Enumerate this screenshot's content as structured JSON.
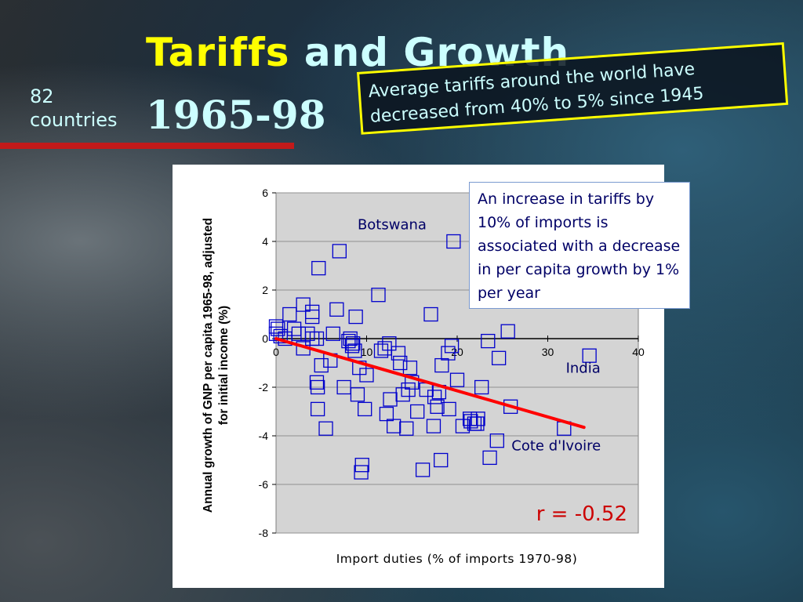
{
  "slide": {
    "title_part1": "Tariffs",
    "title_part2": " and Growth",
    "title_years": "1965-98",
    "subtitle_count": "82",
    "subtitle_unit": "countries",
    "note": "Average tariffs around the world have decreased from 40% to 5% since 1945",
    "annotation": "An increase in tariffs by 10% of imports is associated with a decrease in per capita growth by 1% per year"
  },
  "colors": {
    "title_highlight": "#ffff00",
    "title_text": "#ccffff",
    "accent_rule": "#c21a1a",
    "marker": "#0000cc",
    "trend_line": "#ff0000",
    "label_text": "#000066"
  },
  "chart_data": {
    "type": "scatter",
    "xlabel": "Import duties (% of imports 1970-98)",
    "ylabel": "Annual growth of GNP per capita 1965-98, adjusted for initial income (%)",
    "xlim": [
      0,
      40
    ],
    "ylim": [
      -8,
      6
    ],
    "x_ticks": [
      0,
      10,
      20,
      30,
      40
    ],
    "y_ticks": [
      6,
      4,
      2,
      0,
      -2,
      -4,
      -6,
      -8
    ],
    "grid": true,
    "correlation_label": "r = -0.52",
    "trend_line": [
      [
        0,
        0
      ],
      [
        34,
        -3.65
      ]
    ],
    "labels": [
      {
        "text": "Botswana",
        "x": 9,
        "y": 4.5
      },
      {
        "text": "India",
        "x": 32,
        "y": -1.4
      },
      {
        "text": "Cote d'Ivoire",
        "x": 26,
        "y": -4.6
      }
    ],
    "points": [
      [
        0,
        0.5
      ],
      [
        0,
        0.2
      ],
      [
        0.2,
        0.4
      ],
      [
        0.5,
        0.1
      ],
      [
        1,
        0
      ],
      [
        1.5,
        1.0
      ],
      [
        2,
        0.4
      ],
      [
        2.5,
        0.2
      ],
      [
        3,
        1.4
      ],
      [
        3,
        -0.4
      ],
      [
        3.5,
        0.2
      ],
      [
        4,
        1.1
      ],
      [
        4,
        0.9
      ],
      [
        4,
        0
      ],
      [
        4.5,
        0
      ],
      [
        4.5,
        -1.8
      ],
      [
        4.6,
        -2.0
      ],
      [
        4.6,
        -2.9
      ],
      [
        4.7,
        2.9
      ],
      [
        5,
        -1.1
      ],
      [
        5.5,
        -3.7
      ],
      [
        6,
        -0.9
      ],
      [
        6.3,
        0.2
      ],
      [
        6.7,
        1.2
      ],
      [
        7,
        3.6
      ],
      [
        7.5,
        -2.0
      ],
      [
        8,
        -0.1
      ],
      [
        8.2,
        0
      ],
      [
        8.4,
        -0.3
      ],
      [
        8.5,
        -0.2
      ],
      [
        8.7,
        -0.5
      ],
      [
        8.8,
        0.9
      ],
      [
        9,
        -2.3
      ],
      [
        9.2,
        -1.2
      ],
      [
        9.4,
        -5.5
      ],
      [
        9.5,
        -5.2
      ],
      [
        9.8,
        -2.9
      ],
      [
        10,
        -1.5
      ],
      [
        11.3,
        1.8
      ],
      [
        11.6,
        -0.5
      ],
      [
        12,
        -0.4
      ],
      [
        12.2,
        -3.1
      ],
      [
        12.5,
        -0.2
      ],
      [
        12.6,
        -2.5
      ],
      [
        13,
        -3.6
      ],
      [
        13.5,
        -0.6
      ],
      [
        13.7,
        -1.0
      ],
      [
        14,
        -2.3
      ],
      [
        14.4,
        -3.7
      ],
      [
        14.6,
        -2.1
      ],
      [
        14.8,
        -1.2
      ],
      [
        15,
        -1.8
      ],
      [
        15.6,
        -3.0
      ],
      [
        16.2,
        -5.4
      ],
      [
        16.6,
        -2.1
      ],
      [
        17.1,
        1.0
      ],
      [
        17.4,
        -3.6
      ],
      [
        17.5,
        -2.4
      ],
      [
        17.8,
        -2.8
      ],
      [
        18,
        -2.2
      ],
      [
        18.2,
        -5.0
      ],
      [
        18.3,
        -1.1
      ],
      [
        19,
        -0.6
      ],
      [
        19.1,
        -2.9
      ],
      [
        19.4,
        -0.3
      ],
      [
        19.6,
        4.0
      ],
      [
        20,
        -1.7
      ],
      [
        20.6,
        -3.6
      ],
      [
        21.4,
        -3.3
      ],
      [
        21.5,
        -3.4
      ],
      [
        21.9,
        -3.5
      ],
      [
        22.2,
        -3.5
      ],
      [
        22.3,
        -3.3
      ],
      [
        22.7,
        -2.0
      ],
      [
        23.4,
        -0.1
      ],
      [
        23.6,
        -4.9
      ],
      [
        24.4,
        -4.2
      ],
      [
        24.6,
        -0.8
      ],
      [
        25.6,
        0.3
      ],
      [
        25.9,
        -2.8
      ],
      [
        31.8,
        -3.7
      ],
      [
        34.6,
        -0.7
      ]
    ]
  }
}
